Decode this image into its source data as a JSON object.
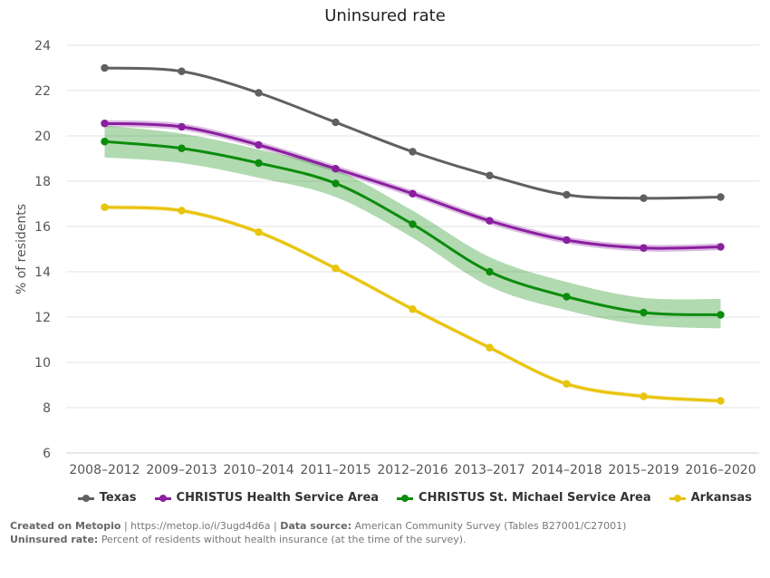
{
  "chart_data": {
    "type": "line",
    "title": "Uninsured rate",
    "xlabel": "",
    "ylabel": "% of residents",
    "ylim": [
      6,
      24
    ],
    "yticks": [
      6,
      8,
      10,
      12,
      14,
      16,
      18,
      20,
      22,
      24
    ],
    "grid": true,
    "legend_position": "bottom-right",
    "categories": [
      "2008–2012",
      "2009–2013",
      "2010–2014",
      "2011–2015",
      "2012–2016",
      "2013–2017",
      "2014–2018",
      "2015–2019",
      "2016–2020"
    ],
    "series": [
      {
        "name": "Texas",
        "color": "#606060",
        "values": [
          23.0,
          22.85,
          21.9,
          20.6,
          19.3,
          18.25,
          17.4,
          17.25,
          17.3
        ]
      },
      {
        "name": "CHRISTUS Health Service Area",
        "color": "#8a1fa0",
        "values": [
          20.55,
          20.4,
          19.6,
          18.55,
          17.45,
          16.25,
          15.4,
          15.05,
          15.1
        ],
        "ci_upper": [
          20.7,
          20.55,
          19.75,
          18.7,
          17.6,
          16.4,
          15.55,
          15.2,
          15.25
        ],
        "ci_lower": [
          20.4,
          20.25,
          19.45,
          18.4,
          17.3,
          16.1,
          15.25,
          14.9,
          14.95
        ]
      },
      {
        "name": "CHRISTUS St. Michael Service Area",
        "color": "#0c8c0c",
        "values": [
          19.75,
          19.45,
          18.8,
          17.9,
          16.1,
          14.0,
          12.9,
          12.2,
          12.1
        ],
        "ci_upper": [
          20.45,
          20.1,
          19.4,
          18.5,
          16.7,
          14.65,
          13.55,
          12.85,
          12.8
        ],
        "ci_lower": [
          19.05,
          18.8,
          18.15,
          17.3,
          15.5,
          13.35,
          12.3,
          11.65,
          11.5
        ]
      },
      {
        "name": "Arkansas",
        "color": "#e8c40c",
        "values": [
          16.85,
          16.7,
          15.75,
          14.15,
          12.35,
          10.65,
          9.05,
          8.5,
          8.3
        ],
        "ci_upper": [
          16.95,
          16.8,
          15.85,
          14.25,
          12.45,
          10.75,
          9.15,
          8.6,
          8.4
        ],
        "ci_lower": [
          16.75,
          16.6,
          15.65,
          14.05,
          12.25,
          10.55,
          8.95,
          8.4,
          8.2
        ]
      }
    ]
  },
  "footer": {
    "created_label": "Created on Metopio",
    "link": "https://metop.io/i/3ugd4d6a",
    "source_label": "Data source:",
    "source_text": "American Community Survey (Tables B27001/C27001)",
    "definition_label": "Uninsured rate:",
    "definition_text": "Percent of residents without health insurance (at the time of the survey)."
  }
}
